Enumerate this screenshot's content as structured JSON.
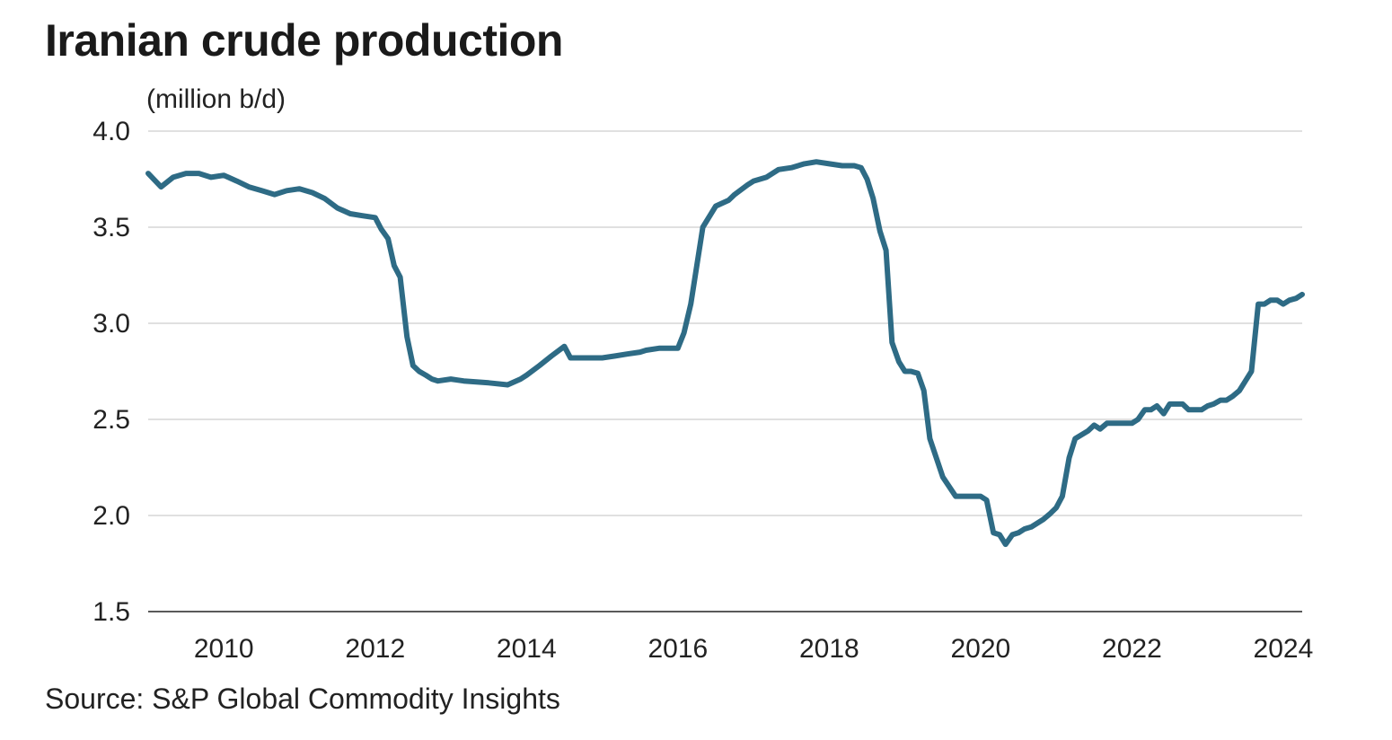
{
  "chart_data": {
    "type": "line",
    "title": "Iranian crude production",
    "ylabel": "(million b/d)",
    "xlabel": "",
    "source": "Source: S&P Global Commodity Insights",
    "ylim": [
      1.5,
      4.0
    ],
    "xlim": [
      2009.0,
      2024.25
    ],
    "yticks": [
      "1.5",
      "2.0",
      "2.5",
      "3.0",
      "3.5",
      "4.0"
    ],
    "xticks": [
      "2010",
      "2012",
      "2014",
      "2016",
      "2018",
      "2020",
      "2022",
      "2024"
    ],
    "grid": true,
    "series": [
      {
        "name": "Iranian crude production",
        "color": "#2e6b85",
        "x": [
          2009.0,
          2009.17,
          2009.33,
          2009.5,
          2009.67,
          2009.83,
          2010.0,
          2010.17,
          2010.33,
          2010.5,
          2010.67,
          2010.83,
          2011.0,
          2011.17,
          2011.33,
          2011.5,
          2011.67,
          2011.83,
          2012.0,
          2012.08,
          2012.17,
          2012.25,
          2012.33,
          2012.42,
          2012.5,
          2012.58,
          2012.67,
          2012.75,
          2012.83,
          2013.0,
          2013.17,
          2013.5,
          2013.75,
          2013.92,
          2014.0,
          2014.17,
          2014.33,
          2014.5,
          2014.58,
          2014.75,
          2015.0,
          2015.17,
          2015.33,
          2015.5,
          2015.58,
          2015.75,
          2015.92,
          2016.0,
          2016.08,
          2016.17,
          2016.25,
          2016.33,
          2016.5,
          2016.67,
          2016.75,
          2016.92,
          2017.0,
          2017.17,
          2017.33,
          2017.5,
          2017.67,
          2017.83,
          2018.0,
          2018.17,
          2018.33,
          2018.42,
          2018.5,
          2018.58,
          2018.67,
          2018.75,
          2018.83,
          2018.92,
          2019.0,
          2019.08,
          2019.17,
          2019.25,
          2019.33,
          2019.5,
          2019.67,
          2019.83,
          2020.0,
          2020.08,
          2020.17,
          2020.25,
          2020.33,
          2020.42,
          2020.5,
          2020.58,
          2020.67,
          2020.83,
          2020.92,
          2021.0,
          2021.08,
          2021.17,
          2021.25,
          2021.42,
          2021.5,
          2021.58,
          2021.67,
          2021.83,
          2022.0,
          2022.08,
          2022.17,
          2022.25,
          2022.33,
          2022.42,
          2022.5,
          2022.58,
          2022.67,
          2022.75,
          2022.83,
          2022.92,
          2023.0,
          2023.08,
          2023.17,
          2023.25,
          2023.33,
          2023.42,
          2023.5,
          2023.58,
          2023.67,
          2023.75,
          2023.83,
          2023.92,
          2024.0,
          2024.08,
          2024.17,
          2024.25
        ],
        "y": [
          3.78,
          3.71,
          3.76,
          3.78,
          3.78,
          3.76,
          3.77,
          3.74,
          3.71,
          3.69,
          3.67,
          3.69,
          3.7,
          3.68,
          3.65,
          3.6,
          3.57,
          3.56,
          3.55,
          3.49,
          3.44,
          3.3,
          3.24,
          2.93,
          2.78,
          2.75,
          2.73,
          2.71,
          2.7,
          2.71,
          2.7,
          2.69,
          2.68,
          2.71,
          2.73,
          2.78,
          2.83,
          2.88,
          2.82,
          2.82,
          2.82,
          2.83,
          2.84,
          2.85,
          2.86,
          2.87,
          2.87,
          2.87,
          2.95,
          3.1,
          3.3,
          3.5,
          3.61,
          3.64,
          3.67,
          3.72,
          3.74,
          3.76,
          3.8,
          3.81,
          3.83,
          3.84,
          3.83,
          3.82,
          3.82,
          3.81,
          3.75,
          3.65,
          3.48,
          3.38,
          2.9,
          2.8,
          2.75,
          2.75,
          2.74,
          2.65,
          2.4,
          2.2,
          2.1,
          2.1,
          2.1,
          2.08,
          1.91,
          1.9,
          1.85,
          1.9,
          1.91,
          1.93,
          1.94,
          1.98,
          2.01,
          2.04,
          2.1,
          2.3,
          2.4,
          2.44,
          2.47,
          2.45,
          2.48,
          2.48,
          2.48,
          2.5,
          2.55,
          2.55,
          2.57,
          2.53,
          2.58,
          2.58,
          2.58,
          2.55,
          2.55,
          2.55,
          2.57,
          2.58,
          2.6,
          2.6,
          2.62,
          2.65,
          2.7,
          2.75,
          3.1,
          3.1,
          3.12,
          3.12,
          3.1,
          3.12,
          3.13,
          3.15
        ]
      }
    ]
  }
}
